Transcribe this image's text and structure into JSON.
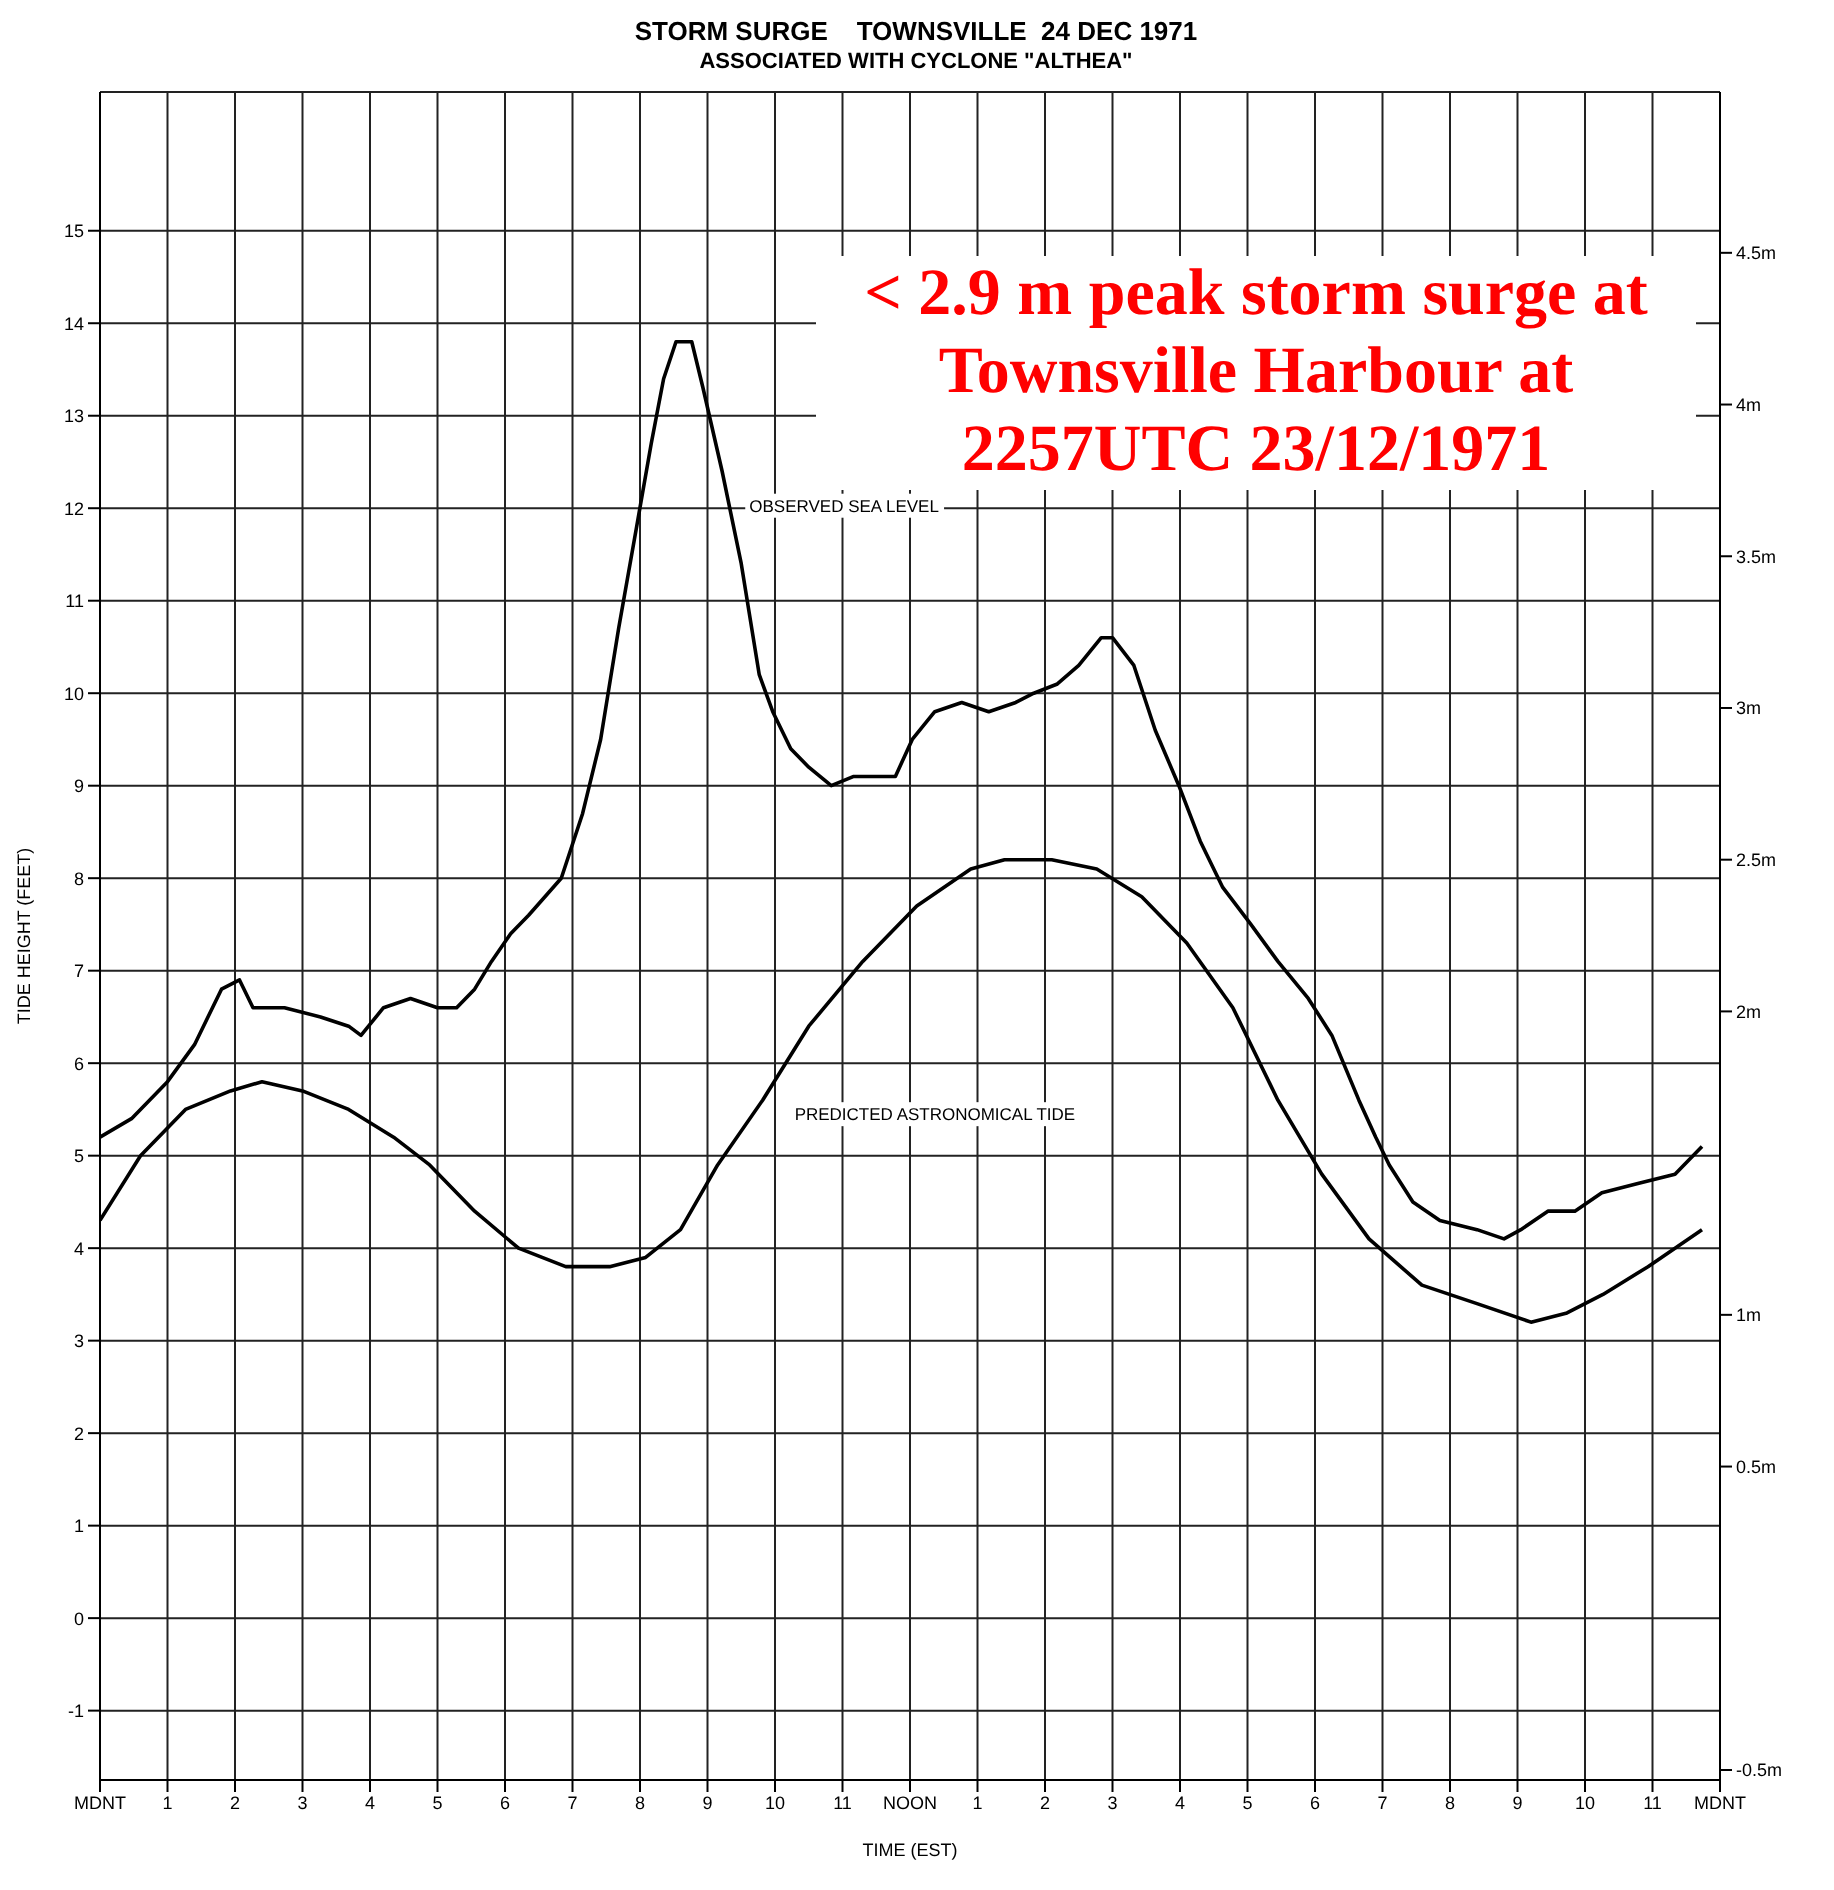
{
  "chart_data": {
    "type": "line",
    "title": "STORM SURGE    TOWNSVILLE  24 DEC 1971",
    "subtitle": "ASSOCIATED WITH CYCLONE \"ALTHEA\"",
    "xlabel": "TIME (EST)",
    "ylabel": "TIDE HEIGHT  (FEET)",
    "annotations": [
      "< 2.9 m peak storm surge at Townsville Harbour at 2257UTC 23/12/1971"
    ],
    "series": [
      {
        "name": "OBSERVED SEA LEVEL",
        "color": "#000000",
        "x": [
          "1971-12-24T00:00",
          "1971-12-24T00:28",
          "1971-12-24T01:00",
          "1971-12-24T01:24",
          "1971-12-24T01:48",
          "1971-12-24T02:04",
          "1971-12-24T02:16",
          "1971-12-24T02:44",
          "1971-12-24T03:16",
          "1971-12-24T03:41",
          "1971-12-24T03:52",
          "1971-12-24T04:12",
          "1971-12-24T04:36",
          "1971-12-24T05:00",
          "1971-12-24T05:17",
          "1971-12-24T05:33",
          "1971-12-24T05:48",
          "1971-12-24T06:05",
          "1971-12-24T06:21",
          "1971-12-24T06:50",
          "1971-12-24T07:09",
          "1971-12-24T07:25",
          "1971-12-24T07:41",
          "1971-12-24T07:57",
          "1971-12-24T08:10",
          "1971-12-24T08:21",
          "1971-12-24T08:32",
          "1971-12-24T08:46",
          "1971-12-24T08:56",
          "1971-12-24T09:13",
          "1971-12-24T09:30",
          "1971-12-24T09:46",
          "1971-12-24T09:58",
          "1971-12-24T10:14",
          "1971-12-24T10:30",
          "1971-12-24T10:50",
          "1971-12-24T11:10",
          "1971-12-24T11:34",
          "1971-12-24T11:47",
          "1971-12-24T12:02",
          "1971-12-24T12:22",
          "1971-12-24T12:46",
          "1971-12-24T13:10",
          "1971-12-24T13:34",
          "1971-12-24T13:50",
          "1971-12-24T14:11",
          "1971-12-24T14:30",
          "1971-12-24T14:50",
          "1971-12-24T15:00",
          "1971-12-24T15:19",
          "1971-12-24T15:38",
          "1971-12-24T15:59",
          "1971-12-24T16:18",
          "1971-12-24T16:38",
          "1971-12-24T17:03",
          "1971-12-24T17:27",
          "1971-12-24T17:54",
          "1971-12-24T18:15",
          "1971-12-24T18:39",
          "1971-12-24T18:54",
          "1971-12-24T19:06",
          "1971-12-24T19:27",
          "1971-12-24T19:51",
          "1971-12-24T20:24",
          "1971-12-24T20:48",
          "1971-12-24T21:03",
          "1971-12-24T21:27",
          "1971-12-24T21:51",
          "1971-12-24T22:15",
          "1971-12-24T22:47",
          "1971-12-24T23:20",
          "1971-12-24T23:44"
        ],
        "values": [
          5.2,
          5.4,
          5.8,
          6.2,
          6.8,
          6.9,
          6.6,
          6.6,
          6.5,
          6.4,
          6.3,
          6.6,
          6.7,
          6.6,
          6.6,
          6.8,
          7.1,
          7.4,
          7.6,
          8.0,
          8.7,
          9.5,
          10.7,
          11.8,
          12.7,
          13.4,
          13.8,
          13.8,
          13.3,
          12.4,
          11.4,
          10.2,
          9.8,
          9.4,
          9.2,
          9.0,
          9.1,
          9.1,
          9.1,
          9.5,
          9.8,
          9.9,
          9.8,
          9.9,
          10.0,
          10.1,
          10.3,
          10.6,
          10.6,
          10.3,
          9.6,
          9.0,
          8.4,
          7.9,
          7.5,
          7.1,
          6.7,
          6.3,
          5.6,
          5.2,
          4.9,
          4.5,
          4.3,
          4.2,
          4.1,
          4.2,
          4.4,
          4.4,
          4.6,
          4.7,
          4.8,
          5.1
        ]
      },
      {
        "name": "PREDICTED ASTRONOMICAL TIDE",
        "color": "#000000",
        "x": [
          "1971-12-24T00:00",
          "1971-12-24T00:36",
          "1971-12-24T01:16",
          "1971-12-24T01:56",
          "1971-12-24T02:24",
          "1971-12-24T03:00",
          "1971-12-24T03:41",
          "1971-12-24T04:21",
          "1971-12-24T04:53",
          "1971-12-24T05:33",
          "1971-12-24T06:12",
          "1971-12-24T06:54",
          "1971-12-24T07:33",
          "1971-12-24T08:05",
          "1971-12-24T08:36",
          "1971-12-24T09:09",
          "1971-12-24T09:49",
          "1971-12-24T10:30",
          "1971-12-24T11:18",
          "1971-12-24T12:06",
          "1971-12-24T12:54",
          "1971-12-24T13:24",
          "1971-12-24T14:06",
          "1971-12-24T14:46",
          "1971-12-24T15:26",
          "1971-12-24T16:06",
          "1971-12-24T16:47",
          "1971-12-24T17:27",
          "1971-12-24T18:06",
          "1971-12-24T18:48",
          "1971-12-24T19:35",
          "1971-12-24T20:24",
          "1971-12-24T21:12",
          "1971-12-24T21:44",
          "1971-12-24T22:16",
          "1971-12-24T22:56",
          "1971-12-24T23:44"
        ],
        "values": [
          4.3,
          5.0,
          5.5,
          5.7,
          5.8,
          5.7,
          5.5,
          5.2,
          4.9,
          4.4,
          4.0,
          3.8,
          3.8,
          3.9,
          4.2,
          4.9,
          5.6,
          6.4,
          7.1,
          7.7,
          8.1,
          8.2,
          8.2,
          8.1,
          7.8,
          7.3,
          6.6,
          5.6,
          4.8,
          4.1,
          3.6,
          3.4,
          3.2,
          3.3,
          3.5,
          3.8,
          4.2
        ]
      }
    ],
    "xlim": [
      "1971-12-24T00:00",
      "1971-12-25T00:00"
    ],
    "xticks": [
      {
        "value": "1971-12-24T00:00",
        "label": "MDNT"
      },
      {
        "value": "1971-12-24T01:00",
        "label": "1"
      },
      {
        "value": "1971-12-24T02:00",
        "label": "2"
      },
      {
        "value": "1971-12-24T03:00",
        "label": "3"
      },
      {
        "value": "1971-12-24T04:00",
        "label": "4"
      },
      {
        "value": "1971-12-24T05:00",
        "label": "5"
      },
      {
        "value": "1971-12-24T06:00",
        "label": "6"
      },
      {
        "value": "1971-12-24T07:00",
        "label": "7"
      },
      {
        "value": "1971-12-24T08:00",
        "label": "8"
      },
      {
        "value": "1971-12-24T09:00",
        "label": "9"
      },
      {
        "value": "1971-12-24T10:00",
        "label": "10"
      },
      {
        "value": "1971-12-24T11:00",
        "label": "11"
      },
      {
        "value": "1971-12-24T12:00",
        "label": "NOON"
      },
      {
        "value": "1971-12-24T13:00",
        "label": "1"
      },
      {
        "value": "1971-12-24T14:00",
        "label": "2"
      },
      {
        "value": "1971-12-24T15:00",
        "label": "3"
      },
      {
        "value": "1971-12-24T16:00",
        "label": "4"
      },
      {
        "value": "1971-12-24T17:00",
        "label": "5"
      },
      {
        "value": "1971-12-24T18:00",
        "label": "6"
      },
      {
        "value": "1971-12-24T19:00",
        "label": "7"
      },
      {
        "value": "1971-12-24T20:00",
        "label": "8"
      },
      {
        "value": "1971-12-24T21:00",
        "label": "9"
      },
      {
        "value": "1971-12-24T22:00",
        "label": "10"
      },
      {
        "value": "1971-12-24T23:00",
        "label": "11"
      },
      {
        "value": "1971-12-25T00:00",
        "label": "MDNT"
      }
    ],
    "ylim": [
      -1.75,
      16.5
    ],
    "yticks": [
      -1,
      0,
      1,
      2,
      3,
      4,
      5,
      6,
      7,
      8,
      9,
      10,
      11,
      12,
      13,
      14,
      15
    ],
    "y2lim": [
      -0.533,
      5.03
    ],
    "y2ticks": [
      {
        "value": -0.5,
        "label": "-0.5m"
      },
      {
        "value": 0.5,
        "label": "0.5m"
      },
      {
        "value": 1,
        "label": "1m"
      },
      {
        "value": 2,
        "label": "2m"
      },
      {
        "value": 2.5,
        "label": "2.5m"
      },
      {
        "value": 3,
        "label": "3m"
      },
      {
        "value": 3.5,
        "label": "3.5m"
      },
      {
        "value": 4,
        "label": "4m"
      },
      {
        "value": 4.5,
        "label": "4.5m"
      }
    ],
    "grid": true
  }
}
